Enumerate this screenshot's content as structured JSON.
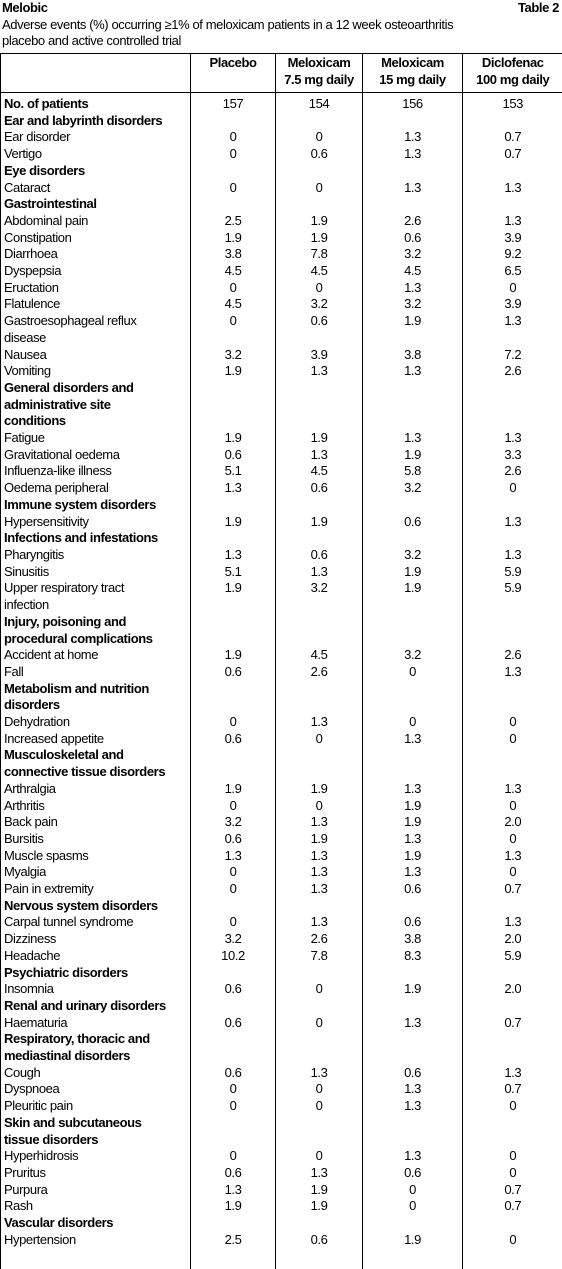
{
  "header": {
    "title": "Melobic",
    "table_label": "Table 2",
    "caption": "Adverse events (%) occurring ≥1% of meloxicam patients in a 12 week osteoarthritis\nplacebo and active controlled trial"
  },
  "table": {
    "columns": [
      "Placebo",
      "Meloxicam\n7.5 mg daily",
      "Meloxicam\n15 mg daily",
      "Diclofenac\n100 mg daily"
    ],
    "patients": {
      "label": "No. of patients",
      "values": [
        "157",
        "154",
        "156",
        "153"
      ]
    },
    "groups": [
      {
        "name": "Ear and labyrinth disorders",
        "items": [
          {
            "label": "Ear disorder",
            "values": [
              "0",
              "0",
              "1.3",
              "0.7"
            ]
          },
          {
            "label": "Vertigo",
            "values": [
              "0",
              "0.6",
              "1.3",
              "0.7"
            ]
          }
        ]
      },
      {
        "name": "Eye disorders",
        "items": [
          {
            "label": "Cataract",
            "values": [
              "0",
              "0",
              "1.3",
              "1.3"
            ]
          }
        ]
      },
      {
        "name": "Gastrointestinal",
        "items": [
          {
            "label": "Abdominal pain",
            "values": [
              "2.5",
              "1.9",
              "2.6",
              "1.3"
            ]
          },
          {
            "label": "Constipation",
            "values": [
              "1.9",
              "1.9",
              "0.6",
              "3.9"
            ]
          },
          {
            "label": "Diarrhoea",
            "values": [
              "3.8",
              "7.8",
              "3.2",
              "9.2"
            ]
          },
          {
            "label": "Dyspepsia",
            "values": [
              "4.5",
              "4.5",
              "4.5",
              "6.5"
            ]
          },
          {
            "label": "Eructation",
            "values": [
              "0",
              "0",
              "1.3",
              "0"
            ]
          },
          {
            "label": "Flatulence",
            "values": [
              "4.5",
              "3.2",
              "3.2",
              "3.9"
            ]
          },
          {
            "label": "Gastroesophageal reflux\ndisease",
            "values": [
              "0",
              "0.6",
              "1.9",
              "1.3"
            ]
          },
          {
            "label": "Nausea",
            "values": [
              "3.2",
              "3.9",
              "3.8",
              "7.2"
            ]
          },
          {
            "label": "Vomiting",
            "values": [
              "1.9",
              "1.3",
              "1.3",
              "2.6"
            ]
          }
        ]
      },
      {
        "name": "General disorders and\nadministrative site\nconditions",
        "items": [
          {
            "label": "Fatigue",
            "values": [
              "1.9",
              "1.9",
              "1.3",
              "1.3"
            ]
          },
          {
            "label": "Gravitational oedema",
            "values": [
              "0.6",
              "1.3",
              "1.9",
              "3.3"
            ]
          },
          {
            "label": "Influenza-like illness",
            "values": [
              "5.1",
              "4.5",
              "5.8",
              "2.6"
            ]
          },
          {
            "label": "Oedema peripheral",
            "values": [
              "1.3",
              "0.6",
              "3.2",
              "0"
            ]
          }
        ]
      },
      {
        "name": "Immune system disorders",
        "items": [
          {
            "label": "Hypersensitivity",
            "values": [
              "1.9",
              "1.9",
              "0.6",
              "1.3"
            ]
          }
        ]
      },
      {
        "name": "Infections and infestations",
        "items": [
          {
            "label": "Pharyngitis",
            "values": [
              "1.3",
              "0.6",
              "3.2",
              "1.3"
            ]
          },
          {
            "label": "Sinusitis",
            "values": [
              "5.1",
              "1.3",
              "1.9",
              "5.9"
            ]
          },
          {
            "label": "Upper respiratory tract\ninfection",
            "values": [
              "1.9",
              "3.2",
              "1.9",
              "5.9"
            ]
          }
        ]
      },
      {
        "name": "Injury, poisoning and\nprocedural complications",
        "items": [
          {
            "label": "Accident at home",
            "values": [
              "1.9",
              "4.5",
              "3.2",
              "2.6"
            ]
          },
          {
            "label": "Fall",
            "values": [
              "0.6",
              "2.6",
              "0",
              "1.3"
            ]
          }
        ]
      },
      {
        "name": "Metabolism and nutrition\ndisorders",
        "items": [
          {
            "label": "Dehydration",
            "values": [
              "0",
              "1.3",
              "0",
              "0"
            ]
          },
          {
            "label": "Increased appetite",
            "values": [
              "0.6",
              "0",
              "1.3",
              "0"
            ]
          }
        ]
      },
      {
        "name": "Musculoskeletal and\nconnective tissue disorders",
        "items": [
          {
            "label": "Arthralgia",
            "values": [
              "1.9",
              "1.9",
              "1.3",
              "1.3"
            ]
          },
          {
            "label": "Arthritis",
            "values": [
              "0",
              "0",
              "1.9",
              "0"
            ]
          },
          {
            "label": "Back pain",
            "values": [
              "3.2",
              "1.3",
              "1.9",
              "2.0"
            ]
          },
          {
            "label": "Bursitis",
            "values": [
              "0.6",
              "1.9",
              "1.3",
              "0"
            ]
          },
          {
            "label": "Muscle spasms",
            "values": [
              "1.3",
              "1.3",
              "1.9",
              "1.3"
            ]
          },
          {
            "label": "Myalgia",
            "values": [
              "0",
              "1.3",
              "1.3",
              "0"
            ]
          },
          {
            "label": "Pain in extremity",
            "values": [
              "0",
              "1.3",
              "0.6",
              "0.7"
            ]
          }
        ]
      },
      {
        "name": "Nervous system disorders",
        "items": [
          {
            "label": "Carpal tunnel syndrome",
            "values": [
              "0",
              "1.3",
              "0.6",
              "1.3"
            ]
          },
          {
            "label": "Dizziness",
            "values": [
              "3.2",
              "2.6",
              "3.8",
              "2.0"
            ]
          },
          {
            "label": "Headache",
            "values": [
              "10.2",
              "7.8",
              "8.3",
              "5.9"
            ]
          }
        ]
      },
      {
        "name": "Psychiatric disorders",
        "items": [
          {
            "label": "Insomnia",
            "values": [
              "0.6",
              "0",
              "1.9",
              "2.0"
            ]
          }
        ]
      },
      {
        "name": "Renal and urinary disorders",
        "items": [
          {
            "label": "Haematuria",
            "values": [
              "0.6",
              "0",
              "1.3",
              "0.7"
            ]
          }
        ]
      },
      {
        "name": "Respiratory, thoracic and\nmediastinal disorders",
        "items": [
          {
            "label": "Cough",
            "values": [
              "0.6",
              "1.3",
              "0.6",
              "1.3"
            ]
          },
          {
            "label": "Dyspnoea",
            "values": [
              "0",
              "0",
              "1.3",
              "0.7"
            ]
          },
          {
            "label": "Pleuritic pain",
            "values": [
              "0",
              "0",
              "1.3",
              "0"
            ]
          }
        ]
      },
      {
        "name": "Skin and subcutaneous\ntissue disorders",
        "items": [
          {
            "label": "Hyperhidrosis",
            "values": [
              "0",
              "0",
              "1.3",
              "0"
            ]
          },
          {
            "label": "Pruritus",
            "values": [
              "0.6",
              "1.3",
              "0.6",
              "0"
            ]
          },
          {
            "label": "Purpura",
            "values": [
              "1.3",
              "1.9",
              "0",
              "0.7"
            ]
          },
          {
            "label": "Rash",
            "values": [
              "1.9",
              "1.9",
              "0",
              "0.7"
            ]
          }
        ]
      },
      {
        "name": "Vascular disorders",
        "items": [
          {
            "label": "Hypertension",
            "values": [
              "2.5",
              "0.6",
              "1.9",
              "0"
            ]
          }
        ]
      }
    ]
  }
}
